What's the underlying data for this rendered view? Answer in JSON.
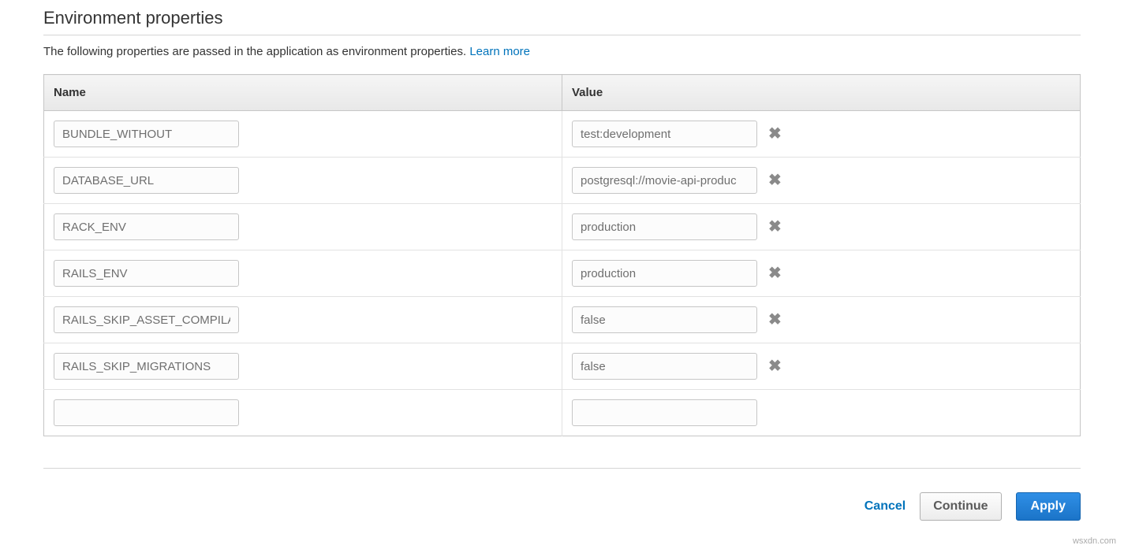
{
  "section": {
    "title": "Environment properties",
    "description": "The following properties are passed in the application as environment properties.",
    "learn_more": "Learn more"
  },
  "table": {
    "headers": {
      "name": "Name",
      "value": "Value"
    },
    "rows": [
      {
        "name": "BUNDLE_WITHOUT",
        "value": "test:development",
        "removable": true
      },
      {
        "name": "DATABASE_URL",
        "value": "postgresql://movie-api-produc",
        "removable": true
      },
      {
        "name": "RACK_ENV",
        "value": "production",
        "removable": true
      },
      {
        "name": "RAILS_ENV",
        "value": "production",
        "removable": true
      },
      {
        "name": "RAILS_SKIP_ASSET_COMPILA",
        "value": "false",
        "removable": true
      },
      {
        "name": "RAILS_SKIP_MIGRATIONS",
        "value": "false",
        "removable": true
      },
      {
        "name": "",
        "value": "",
        "removable": false
      }
    ]
  },
  "footer": {
    "cancel": "Cancel",
    "continue": "Continue",
    "apply": "Apply"
  },
  "watermark": "wsxdn.com",
  "colors": {
    "link": "#0073bb",
    "border": "#c6c6c6",
    "header_bg_top": "#f5f5f5",
    "header_bg_bottom": "#e8e8e8",
    "input_text": "#6f6f6f",
    "remove_icon": "#8a8a8a",
    "apply_bg_top": "#2f8fe6",
    "apply_bg_bottom": "#1b74c8"
  }
}
